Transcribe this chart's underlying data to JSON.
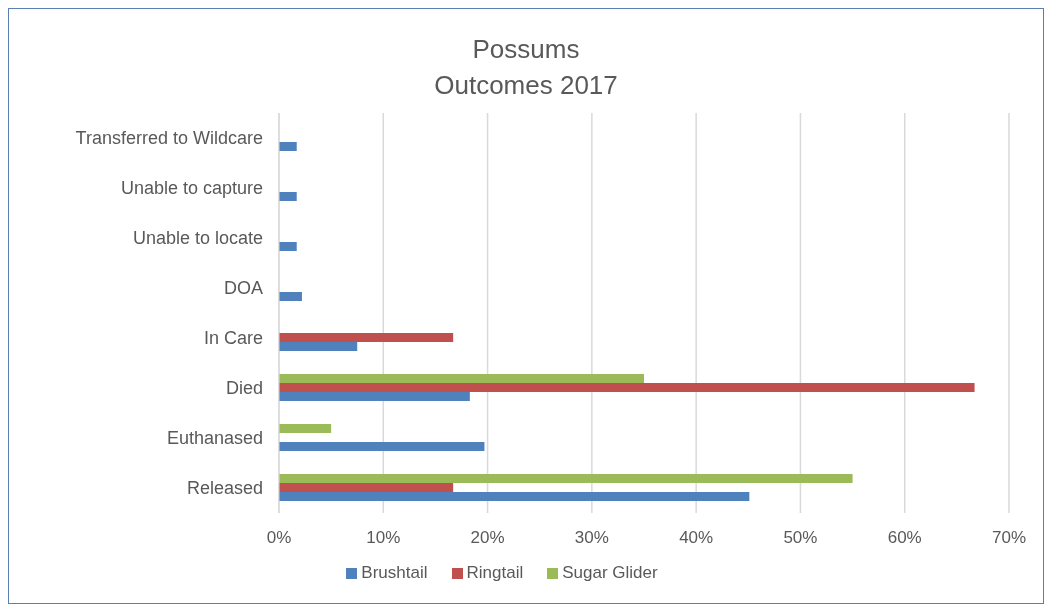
{
  "chart_data": {
    "type": "bar",
    "orientation": "horizontal",
    "title": "Possums",
    "subtitle": "Outcomes 2017",
    "categories": [
      "Transferred to Wildcare",
      "Unable to capture",
      "Unable to locate",
      "DOA",
      "In Care",
      "Died",
      "Euthanased",
      "Released"
    ],
    "series": [
      {
        "name": "Sugar Glider",
        "color": "#9bbb59",
        "values": [
          null,
          null,
          null,
          null,
          null,
          35,
          5,
          55
        ]
      },
      {
        "name": "Ringtail",
        "color": "#c0504d",
        "values": [
          null,
          null,
          null,
          null,
          16.7,
          66.7,
          null,
          16.7
        ]
      },
      {
        "name": "Brushtail",
        "color": "#4f81bd",
        "values": [
          1.7,
          1.7,
          1.7,
          2.2,
          7.5,
          18.3,
          19.7,
          45.1
        ]
      }
    ],
    "xlim": [
      0,
      70
    ],
    "xticks": [
      {
        "value": 0,
        "label": "0%"
      },
      {
        "value": 10,
        "label": "10%"
      },
      {
        "value": 20,
        "label": "20%"
      },
      {
        "value": 30,
        "label": "30%"
      },
      {
        "value": 40,
        "label": "40%"
      },
      {
        "value": 50,
        "label": "50%"
      },
      {
        "value": 60,
        "label": "60%"
      },
      {
        "value": 70,
        "label": "70%"
      }
    ],
    "grid": "x",
    "legend": "bottom"
  }
}
